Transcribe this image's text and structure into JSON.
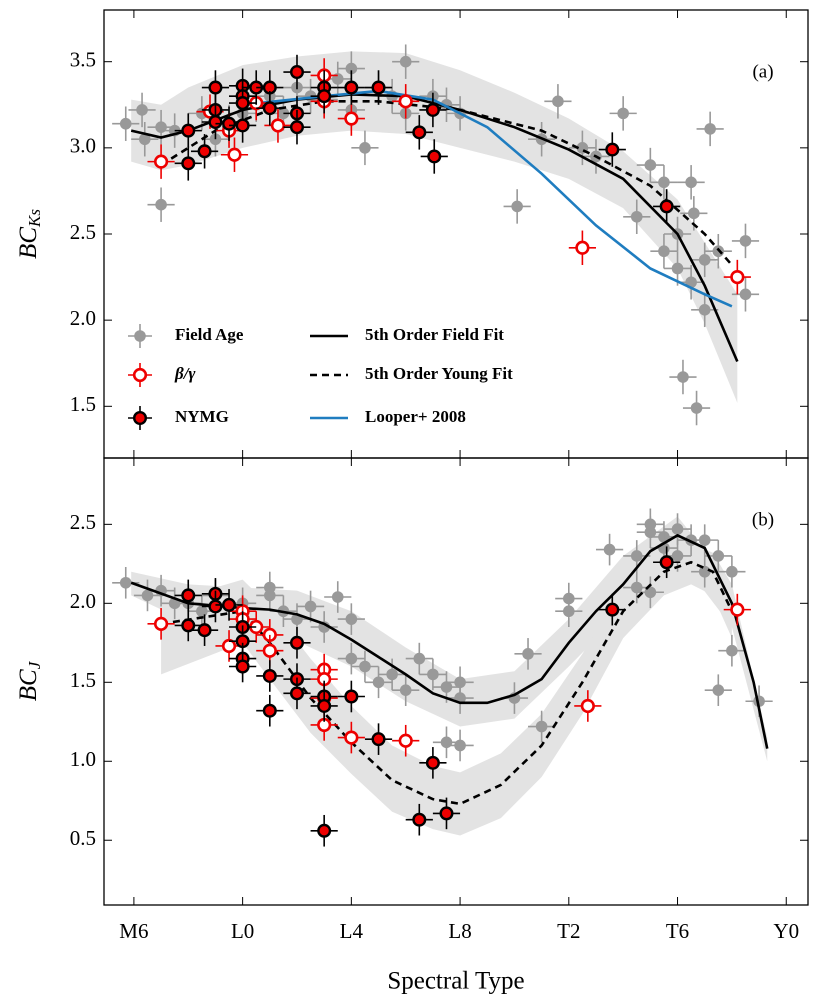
{
  "chart_data": [
    {
      "type": "scatter",
      "panel_label": "(a)",
      "ylabel": {
        "main": "BC",
        "sub": "Ks"
      },
      "xlim": [
        4.9,
        30.8
      ],
      "ylim": [
        1.2,
        3.8
      ],
      "xticks": [
        6,
        10,
        14,
        18,
        22,
        26,
        30
      ],
      "yticks": [
        3.5,
        {
          "value": 3,
          "label": "3.0"
        },
        2.5,
        {
          "value": 2,
          "label": "2.0"
        },
        1.5
      ],
      "legend": "lower left",
      "bands": [
        {
          "color": "#e3e3e3",
          "x": [
            5.9,
            7,
            8,
            10,
            12,
            14,
            16,
            18,
            20,
            22,
            24,
            26,
            27,
            28.2
          ],
          "upper": [
            3.28,
            3.25,
            3.35,
            3.48,
            3.53,
            3.56,
            3.55,
            3.45,
            3.32,
            3.17,
            2.98,
            2.7,
            2.45,
            2.15
          ],
          "lower": [
            2.92,
            2.87,
            2.9,
            3.0,
            3.07,
            3.1,
            3.08,
            3.0,
            2.92,
            2.82,
            2.65,
            2.3,
            1.98,
            1.52
          ]
        }
      ],
      "series": [
        {
          "name": "Field Age",
          "kind": "scatter",
          "marker": "filled",
          "color": "#999999",
          "xerr": 0.5,
          "yerr": 0.1,
          "x": [
            5.7,
            6.3,
            6.4,
            7,
            7,
            7.5,
            8,
            8.5,
            9,
            9.5,
            10,
            10,
            10.5,
            11,
            11.5,
            12,
            12.5,
            13,
            13.5,
            14,
            14,
            14.5,
            15,
            15.5,
            16,
            16,
            17,
            17.5,
            18,
            20.1,
            21,
            21.6,
            22.5,
            23,
            24,
            24.5,
            25,
            25.5,
            25.5,
            26,
            26,
            26.5,
            26.5,
            27,
            27,
            27.2,
            26.2,
            27.5,
            26.6,
            26.7,
            28.5,
            28.5
          ],
          "values": [
            3.14,
            3.22,
            3.05,
            3.12,
            2.67,
            3.1,
            3.1,
            3.2,
            3.05,
            3.15,
            3.2,
            3.3,
            3.25,
            3.3,
            3.2,
            3.35,
            3.3,
            3.28,
            3.4,
            3.46,
            3.22,
            3.0,
            3.35,
            3.3,
            3.5,
            3.2,
            3.3,
            3.25,
            3.2,
            2.66,
            3.05,
            3.27,
            3.0,
            2.95,
            3.2,
            2.6,
            2.9,
            2.8,
            2.4,
            2.5,
            2.3,
            2.22,
            2.8,
            2.06,
            2.35,
            3.11,
            1.67,
            2.4,
            2.62,
            1.49,
            2.46,
            2.15
          ]
        },
        {
          "name": "5th Order Field Fit",
          "kind": "line",
          "color": "#000000",
          "dash": "none",
          "x": [
            5.9,
            7,
            8,
            10,
            12,
            14,
            16,
            18,
            20,
            22,
            24,
            26,
            27,
            28.2
          ],
          "values": [
            3.1,
            3.06,
            3.1,
            3.22,
            3.28,
            3.31,
            3.3,
            3.22,
            3.12,
            2.99,
            2.82,
            2.5,
            2.2,
            1.76
          ]
        },
        {
          "name": "5th Order Young Fit",
          "kind": "line",
          "color": "#000000",
          "dash": "7 5",
          "x": [
            7,
            9,
            11,
            13,
            15,
            18,
            21,
            23,
            25,
            27,
            28
          ],
          "values": [
            2.9,
            3.1,
            3.22,
            3.27,
            3.27,
            3.22,
            3.1,
            2.95,
            2.78,
            2.5,
            2.32
          ]
        },
        {
          "name": "Looper+ 2008",
          "kind": "line",
          "color": "#1f7dc0",
          "dash": "none",
          "x": [
            10,
            13,
            15,
            17,
            19,
            21,
            23,
            25,
            27,
            28
          ],
          "values": [
            3.25,
            3.3,
            3.33,
            3.28,
            3.12,
            2.85,
            2.55,
            2.3,
            2.15,
            2.08
          ]
        },
        {
          "name": "β/γ",
          "kind": "scatter",
          "marker": "open",
          "color": "#ee0000",
          "xerr": 0.5,
          "yerr": 0.1,
          "x": [
            7,
            8.8,
            9.5,
            9.7,
            10.5,
            11.3,
            13,
            13,
            14,
            16,
            22.5,
            28.2
          ],
          "values": [
            2.92,
            3.21,
            3.1,
            2.96,
            3.26,
            3.13,
            3.42,
            3.27,
            3.17,
            3.27,
            2.42,
            2.25
          ]
        },
        {
          "name": "NYMG",
          "kind": "scatter",
          "marker": "filled-edge",
          "color": "#ee0000",
          "edge": "#000000",
          "xerr": 0.5,
          "yerr": 0.1,
          "x": [
            8,
            8,
            8.6,
            9,
            9,
            9,
            9.5,
            10,
            10,
            10,
            10,
            10.5,
            11,
            11,
            12,
            12,
            12,
            13,
            13,
            14,
            15,
            17,
            16.5,
            17.05,
            23.6,
            25.6
          ],
          "values": [
            2.91,
            3.1,
            2.98,
            3.35,
            3.22,
            3.15,
            3.14,
            3.36,
            3.3,
            3.26,
            3.13,
            3.35,
            3.35,
            3.23,
            3.44,
            3.2,
            3.12,
            3.35,
            3.3,
            3.35,
            3.35,
            3.22,
            3.09,
            2.95,
            2.99,
            2.66
          ]
        }
      ]
    },
    {
      "type": "scatter",
      "panel_label": "(b)",
      "ylabel": {
        "main": "BC",
        "sub": "J"
      },
      "xlabel": "Spectral Type",
      "xlim": [
        4.9,
        30.8
      ],
      "ylim": [
        0.09,
        2.92
      ],
      "xticks": [
        {
          "value": 6,
          "label": "M6"
        },
        {
          "value": 10,
          "label": "L0"
        },
        {
          "value": 14,
          "label": "L4"
        },
        {
          "value": 18,
          "label": "L8"
        },
        {
          "value": 22,
          "label": "T2"
        },
        {
          "value": 26,
          "label": "T6"
        },
        {
          "value": 30,
          "label": "Y0"
        }
      ],
      "yticks": [
        2.5,
        {
          "value": 2,
          "label": "2.0"
        },
        1.5,
        {
          "value": 1,
          "label": "1.0"
        },
        0.5
      ],
      "bands": [
        {
          "color": "#e3e3e3",
          "x": [
            5.9,
            8,
            10,
            12,
            14,
            16,
            18,
            20,
            22,
            24,
            26,
            28,
            29.3
          ],
          "upper": [
            2.2,
            2.12,
            2.1,
            2.08,
            1.95,
            1.72,
            1.52,
            1.57,
            1.9,
            2.3,
            2.55,
            2.12,
            1.15
          ],
          "lower": [
            2.05,
            1.88,
            1.82,
            1.76,
            1.6,
            1.38,
            1.22,
            1.27,
            1.6,
            1.95,
            2.3,
            1.85,
            1.0
          ]
        },
        {
          "color": "#e3e3e3",
          "x": [
            7,
            10,
            11,
            12.5,
            14,
            15.5,
            17,
            18,
            19.5,
            21,
            22.5,
            24,
            25.5,
            26.5,
            27.3,
            28
          ],
          "upper": [
            2.0,
            2.15,
            1.98,
            1.65,
            1.35,
            1.1,
            0.97,
            0.93,
            1.05,
            1.3,
            1.68,
            2.1,
            2.33,
            2.38,
            2.32,
            2.12
          ],
          "lower": [
            1.55,
            1.75,
            1.52,
            1.18,
            0.92,
            0.68,
            0.57,
            0.53,
            0.64,
            0.9,
            1.3,
            1.78,
            2.05,
            2.12,
            2.05,
            1.78
          ]
        }
      ],
      "series": [
        {
          "kind": "scatter",
          "marker": "filled",
          "color": "#999999",
          "xerr": 0.5,
          "yerr": 0.1,
          "x": [
            5.7,
            6.5,
            7,
            7.5,
            8,
            8.5,
            9,
            10,
            11,
            11,
            11.5,
            12,
            12.5,
            13,
            13.5,
            14,
            14,
            14.5,
            15,
            15.5,
            16,
            16.5,
            17,
            17.5,
            18,
            18,
            17.5,
            18,
            20,
            20.5,
            21,
            22,
            22,
            23.5,
            24.5,
            25,
            25,
            25.5,
            25.5,
            26,
            26,
            26.5,
            27,
            27,
            27.5,
            27.5,
            28,
            28,
            29,
            24.5,
            25
          ],
          "values": [
            2.13,
            2.05,
            2.08,
            2.0,
            2.0,
            1.95,
            2.05,
            2.0,
            2.1,
            2.05,
            1.95,
            1.9,
            1.98,
            1.85,
            2.04,
            1.9,
            1.65,
            1.6,
            1.5,
            1.55,
            1.45,
            1.65,
            1.55,
            1.47,
            1.5,
            1.4,
            1.12,
            1.1,
            1.4,
            1.68,
            1.22,
            2.03,
            1.95,
            2.34,
            2.3,
            2.45,
            2.5,
            2.42,
            2.35,
            2.47,
            2.3,
            2.4,
            2.4,
            2.2,
            2.3,
            1.45,
            2.2,
            1.7,
            1.38,
            2.1,
            2.07
          ]
        },
        {
          "kind": "line",
          "color": "#000000",
          "dash": "none",
          "x": [
            5.9,
            8,
            10,
            11,
            12,
            13,
            14,
            15,
            16,
            17,
            18,
            19,
            20,
            21,
            22,
            23,
            24,
            25,
            26,
            27,
            28,
            28.8,
            29.3
          ],
          "values": [
            2.13,
            2.0,
            1.97,
            1.96,
            1.93,
            1.87,
            1.77,
            1.66,
            1.55,
            1.43,
            1.37,
            1.37,
            1.42,
            1.52,
            1.75,
            1.95,
            2.12,
            2.33,
            2.43,
            2.35,
            2.0,
            1.5,
            1.08
          ]
        },
        {
          "kind": "line",
          "color": "#000000",
          "dash": "7 5",
          "x": [
            7,
            10,
            11,
            12.5,
            14,
            15.5,
            17,
            18,
            19.5,
            21,
            22.5,
            24,
            25.5,
            26.5,
            27.3,
            28
          ],
          "values": [
            1.87,
            1.95,
            1.75,
            1.4,
            1.12,
            0.88,
            0.76,
            0.73,
            0.85,
            1.1,
            1.5,
            1.95,
            2.2,
            2.26,
            2.2,
            1.95
          ]
        },
        {
          "kind": "scatter",
          "marker": "open",
          "color": "#ee0000",
          "xerr": 0.5,
          "yerr": 0.1,
          "x": [
            7,
            9.5,
            10,
            10,
            10.5,
            11,
            11,
            13,
            13,
            13,
            13,
            14,
            16,
            22.7,
            28.2
          ],
          "values": [
            1.87,
            1.73,
            1.95,
            1.9,
            1.85,
            1.8,
            1.7,
            1.58,
            1.52,
            1.4,
            1.23,
            1.15,
            1.13,
            1.35,
            1.96
          ]
        },
        {
          "kind": "scatter",
          "marker": "filled-edge",
          "color": "#ee0000",
          "edge": "#000000",
          "xerr": 0.5,
          "yerr": 0.1,
          "x": [
            8,
            8,
            8.6,
            9,
            9,
            9.5,
            10,
            10,
            10,
            10,
            11,
            11,
            12,
            12,
            12,
            13,
            13,
            13,
            14,
            15,
            16.5,
            17,
            17.5,
            23.6,
            25.6
          ],
          "values": [
            2.05,
            1.86,
            1.83,
            2.06,
            1.98,
            1.99,
            1.85,
            1.76,
            1.65,
            1.6,
            1.54,
            1.32,
            1.75,
            1.52,
            1.43,
            1.41,
            1.35,
            0.56,
            1.41,
            1.14,
            0.63,
            0.99,
            0.67,
            1.96,
            2.26
          ]
        }
      ]
    }
  ]
}
